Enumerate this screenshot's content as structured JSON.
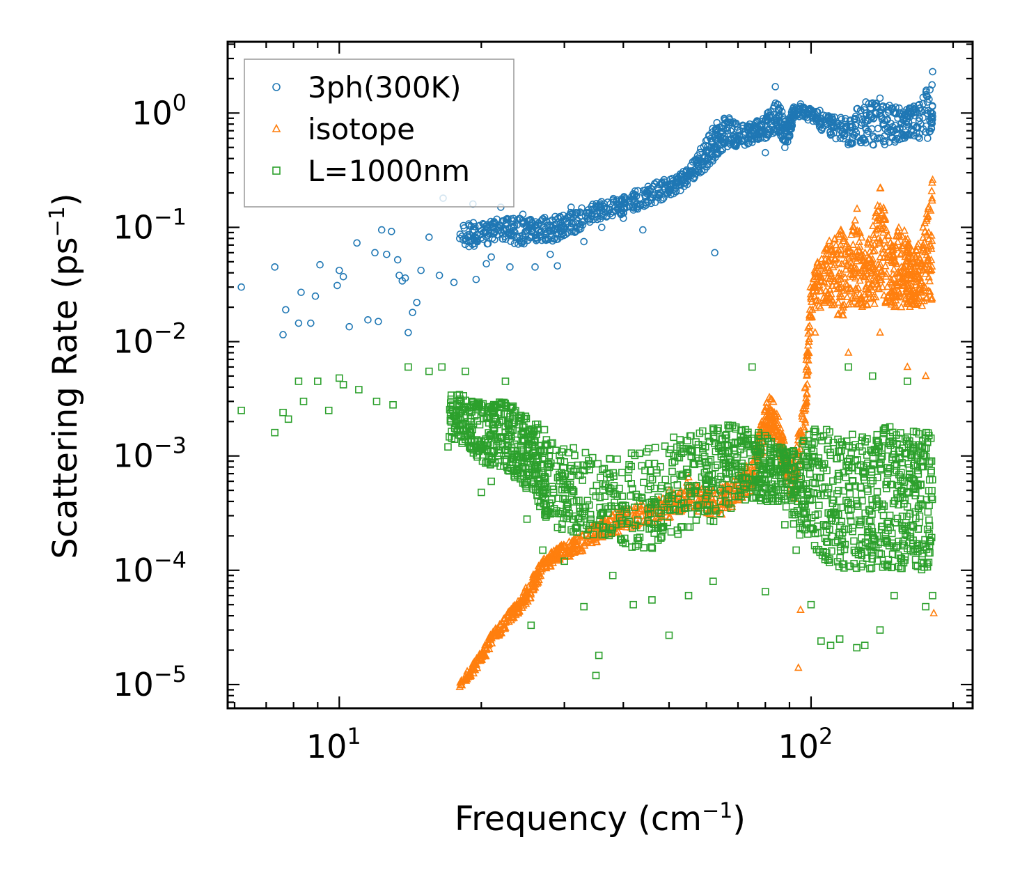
{
  "chart_data": {
    "type": "scatter",
    "title": "",
    "xlabel": "Frequency",
    "xlabel_unit_base": "cm",
    "xlabel_unit_exp": "−1",
    "ylabel": "Scattering Rate",
    "ylabel_unit_base": "ps",
    "ylabel_unit_exp": "−1",
    "xscale": "log",
    "yscale": "log",
    "xlim": [
      5.8,
      220
    ],
    "ylim": [
      6.2e-06,
      4.2
    ],
    "xticks": [
      {
        "value": 10,
        "base": "10",
        "exp": "1"
      },
      {
        "value": 100,
        "base": "10",
        "exp": "2"
      }
    ],
    "yticks": [
      {
        "value": 1,
        "base": "10",
        "exp": "0"
      },
      {
        "value": 0.1,
        "base": "10",
        "exp": "−1"
      },
      {
        "value": 0.01,
        "base": "10",
        "exp": "−2"
      },
      {
        "value": 0.001,
        "base": "10",
        "exp": "−3"
      },
      {
        "value": 0.0001,
        "base": "10",
        "exp": "−4"
      },
      {
        "value": 1e-05,
        "base": "10",
        "exp": "−5"
      }
    ],
    "legend_position": "top-left",
    "series": [
      {
        "name": "3ph(300K)",
        "marker": "circle",
        "color": "#1f77b4",
        "points": [
          [
            6.2,
            0.03
          ],
          [
            7.3,
            0.045
          ],
          [
            7.6,
            0.0115
          ],
          [
            7.7,
            0.019
          ],
          [
            8.2,
            0.0145
          ],
          [
            8.3,
            0.027
          ],
          [
            8.7,
            0.0145
          ],
          [
            8.9,
            0.025
          ],
          [
            9.1,
            0.047
          ],
          [
            9.9,
            0.031
          ],
          [
            10.0,
            0.042
          ],
          [
            10.2,
            0.037
          ],
          [
            10.5,
            0.0135
          ],
          [
            10.9,
            0.073
          ],
          [
            11.5,
            0.0155
          ],
          [
            11.9,
            0.06
          ],
          [
            12.1,
            0.015
          ],
          [
            12.3,
            0.095
          ],
          [
            12.6,
            0.058
          ],
          [
            12.9,
            0.092
          ],
          [
            13.3,
            0.052
          ],
          [
            13.4,
            0.038
          ],
          [
            13.6,
            0.034
          ],
          [
            13.8,
            0.036
          ],
          [
            14.0,
            0.012
          ],
          [
            14.3,
            0.018
          ],
          [
            14.6,
            0.022
          ],
          [
            14.9,
            0.042
          ],
          [
            15.5,
            0.082
          ],
          [
            16.3,
            0.038
          ],
          [
            16.6,
            0.18
          ],
          [
            17.5,
            0.033
          ],
          [
            18.0,
            0.08
          ],
          [
            19.2,
            0.16
          ],
          [
            19.5,
            0.035
          ],
          [
            20.5,
            0.048
          ],
          [
            21.0,
            0.055
          ],
          [
            22.0,
            0.15
          ],
          [
            23.0,
            0.045
          ],
          [
            24.5,
            0.13
          ],
          [
            26.0,
            0.045
          ],
          [
            28.0,
            0.058
          ],
          [
            29.0,
            0.046
          ],
          [
            31.0,
            0.15
          ],
          [
            33.0,
            0.075
          ],
          [
            36.0,
            0.1
          ],
          [
            40.0,
            0.12
          ],
          [
            44.0,
            0.095
          ],
          [
            62.5,
            0.06
          ],
          [
            80.0,
            0.45
          ],
          [
            84.0,
            1.7
          ],
          [
            88.0,
            0.5
          ],
          [
            95.0,
            1.2
          ],
          [
            105.0,
            0.9
          ],
          [
            120.0,
            0.55
          ],
          [
            140.0,
            1.35
          ],
          [
            160.0,
            1.0
          ],
          [
            181.0,
            2.3
          ]
        ],
        "band": [
          [
            18.0,
            0.065,
            0.11
          ],
          [
            20.0,
            0.07,
            0.11
          ],
          [
            22.0,
            0.075,
            0.12
          ],
          [
            24.0,
            0.07,
            0.12
          ],
          [
            26.0,
            0.075,
            0.12
          ],
          [
            28.0,
            0.075,
            0.125
          ],
          [
            30.0,
            0.08,
            0.13
          ],
          [
            33.0,
            0.1,
            0.15
          ],
          [
            36.0,
            0.12,
            0.17
          ],
          [
            40.0,
            0.13,
            0.19
          ],
          [
            44.0,
            0.15,
            0.23
          ],
          [
            48.0,
            0.17,
            0.26
          ],
          [
            52.0,
            0.2,
            0.28
          ],
          [
            56.0,
            0.25,
            0.38
          ],
          [
            60.0,
            0.32,
            0.6
          ],
          [
            63.0,
            0.42,
            0.85
          ],
          [
            66.0,
            0.5,
            0.95
          ],
          [
            70.0,
            0.5,
            0.8
          ],
          [
            75.0,
            0.55,
            0.85
          ],
          [
            80.0,
            0.6,
            0.95
          ],
          [
            85.0,
            0.7,
            1.3
          ],
          [
            89.0,
            0.5,
            0.8
          ],
          [
            92.0,
            0.9,
            1.2
          ],
          [
            100.0,
            0.85,
            1.1
          ],
          [
            110.0,
            0.6,
            1.0
          ],
          [
            120.0,
            0.5,
            0.9
          ],
          [
            130.0,
            0.55,
            1.3
          ],
          [
            140.0,
            0.5,
            1.2
          ],
          [
            150.0,
            0.55,
            1.15
          ],
          [
            160.0,
            0.6,
            1.1
          ],
          [
            170.0,
            0.6,
            1.2
          ],
          [
            181.0,
            0.6,
            2.2
          ]
        ]
      },
      {
        "name": "isotope",
        "marker": "triangle",
        "color": "#ff7f0e",
        "points": [
          [
            18.0,
            9.5e-06
          ],
          [
            19.0,
            1.2e-05
          ],
          [
            20.5,
            2.2e-05
          ],
          [
            22.0,
            3.3e-05
          ],
          [
            24.0,
            4.8e-05
          ],
          [
            26.0,
            7.5e-05
          ],
          [
            28.0,
            0.00012
          ],
          [
            30.0,
            0.00014
          ],
          [
            35.0,
            0.00024
          ],
          [
            40.0,
            0.00031
          ],
          [
            50.0,
            0.0005
          ],
          [
            55.0,
            0.00065
          ],
          [
            62.0,
            0.0005
          ],
          [
            80.0,
            0.0025
          ],
          [
            85.0,
            0.0015
          ],
          [
            94.0,
            1.4e-05
          ],
          [
            95.0,
            4.5e-05
          ],
          [
            98.0,
            0.006
          ],
          [
            102.0,
            0.012
          ],
          [
            120.0,
            0.008
          ],
          [
            140.0,
            0.012
          ],
          [
            160.0,
            0.006
          ],
          [
            175.0,
            0.005
          ],
          [
            181.0,
            0.26
          ],
          [
            182.0,
            4.2e-05
          ]
        ],
        "band": [
          [
            18.0,
            9.3e-06,
            1.05e-05
          ],
          [
            19.5,
            1.3e-05,
            1.7e-05
          ],
          [
            21.0,
            2.1e-05,
            2.8e-05
          ],
          [
            22.5,
            3.1e-05,
            4e-05
          ],
          [
            24.0,
            4.2e-05,
            5.5e-05
          ],
          [
            25.5,
            5.8e-05,
            8.5e-05
          ],
          [
            27.0,
            9.5e-05,
            0.000125
          ],
          [
            29.0,
            0.00012,
            0.00016
          ],
          [
            31.0,
            0.00013,
            0.00018
          ],
          [
            34.0,
            0.00016,
            0.00024
          ],
          [
            37.0,
            0.0002,
            0.0003
          ],
          [
            40.0,
            0.00022,
            0.00035
          ],
          [
            45.0,
            0.00025,
            0.00038
          ],
          [
            50.0,
            0.00028,
            0.00045
          ],
          [
            55.0,
            0.00035,
            0.0006
          ],
          [
            60.0,
            0.0003,
            0.0005
          ],
          [
            65.0,
            0.0003,
            0.00055
          ],
          [
            70.0,
            0.0004,
            0.0007
          ],
          [
            75.0,
            0.0005,
            0.0009
          ],
          [
            78.0,
            0.0009,
            0.0018
          ],
          [
            81.0,
            0.0015,
            0.0035
          ],
          [
            84.0,
            0.0014,
            0.0028
          ],
          [
            87.0,
            0.0008,
            0.0016
          ],
          [
            92.0,
            0.0004,
            0.0009
          ],
          [
            97.0,
            0.0015,
            0.004
          ],
          [
            100.0,
            0.015,
            0.04
          ],
          [
            105.0,
            0.02,
            0.06
          ],
          [
            110.0,
            0.022,
            0.08
          ],
          [
            115.0,
            0.015,
            0.1
          ],
          [
            120.0,
            0.02,
            0.07
          ],
          [
            125.0,
            0.02,
            0.15
          ],
          [
            130.0,
            0.02,
            0.06
          ],
          [
            135.0,
            0.02,
            0.1
          ],
          [
            140.0,
            0.025,
            0.25
          ],
          [
            145.0,
            0.02,
            0.1
          ],
          [
            150.0,
            0.02,
            0.07
          ],
          [
            155.0,
            0.02,
            0.12
          ],
          [
            160.0,
            0.02,
            0.08
          ],
          [
            165.0,
            0.02,
            0.06
          ],
          [
            170.0,
            0.02,
            0.08
          ],
          [
            175.0,
            0.02,
            0.12
          ],
          [
            181.0,
            0.02,
            0.27
          ]
        ]
      },
      {
        "name": "L=1000nm",
        "marker": "square",
        "color": "#2ca02c",
        "points": [
          [
            6.2,
            0.0025
          ],
          [
            7.3,
            0.0016
          ],
          [
            7.6,
            0.0024
          ],
          [
            7.8,
            0.0021
          ],
          [
            8.2,
            0.0045
          ],
          [
            8.4,
            0.003
          ],
          [
            9.0,
            0.0045
          ],
          [
            9.5,
            0.0025
          ],
          [
            10.0,
            0.0048
          ],
          [
            10.2,
            0.0042
          ],
          [
            11.0,
            0.0038
          ],
          [
            12.0,
            0.003
          ],
          [
            13.0,
            0.0028
          ],
          [
            14.0,
            0.006
          ],
          [
            15.5,
            0.0055
          ],
          [
            16.5,
            0.006
          ],
          [
            17.0,
            0.0012
          ],
          [
            18.5,
            0.0055
          ],
          [
            19.0,
            0.0016
          ],
          [
            20.0,
            0.00048
          ],
          [
            21.0,
            0.0006
          ],
          [
            22.5,
            0.0045
          ],
          [
            23.0,
            0.0022
          ],
          [
            24.5,
            0.00058
          ],
          [
            25.0,
            0.00028
          ],
          [
            25.5,
            3.3e-05
          ],
          [
            27.0,
            0.00015
          ],
          [
            30.0,
            0.00012
          ],
          [
            33.0,
            4.8e-05
          ],
          [
            35.0,
            1.2e-05
          ],
          [
            35.5,
            1.8e-05
          ],
          [
            38.0,
            9e-05
          ],
          [
            42.0,
            5e-05
          ],
          [
            46.0,
            5.5e-05
          ],
          [
            50.0,
            2.7e-05
          ],
          [
            55.0,
            6e-05
          ],
          [
            62.0,
            8e-05
          ],
          [
            75.0,
            0.006
          ],
          [
            80.0,
            6.5e-05
          ],
          [
            88.0,
            0.00025
          ],
          [
            93.0,
            0.00015
          ],
          [
            100.0,
            5e-05
          ],
          [
            105.0,
            2.4e-05
          ],
          [
            110.0,
            2.2e-05
          ],
          [
            115.0,
            2.5e-05
          ],
          [
            120.0,
            0.006
          ],
          [
            125.0,
            2.1e-05
          ],
          [
            130.0,
            2.2e-05
          ],
          [
            135.0,
            0.005
          ],
          [
            140.0,
            3e-05
          ],
          [
            150.0,
            6e-05
          ],
          [
            160.0,
            0.0045
          ],
          [
            175.0,
            4.8e-05
          ],
          [
            181.0,
            6e-05
          ]
        ],
        "band": [
          [
            17.0,
            0.0015,
            0.0035
          ],
          [
            18.0,
            0.0012,
            0.0035
          ],
          [
            19.0,
            0.0011,
            0.0032
          ],
          [
            20.0,
            0.0009,
            0.003
          ],
          [
            21.0,
            0.0008,
            0.0028
          ],
          [
            22.0,
            0.0008,
            0.003
          ],
          [
            23.0,
            0.0007,
            0.003
          ],
          [
            24.0,
            0.0006,
            0.0025
          ],
          [
            25.0,
            0.0005,
            0.0022
          ],
          [
            26.0,
            0.00045,
            0.002
          ],
          [
            27.0,
            0.0003,
            0.0018
          ],
          [
            28.0,
            0.00025,
            0.0015
          ],
          [
            30.0,
            0.00022,
            0.0012
          ],
          [
            32.0,
            0.0002,
            0.0012
          ],
          [
            35.0,
            0.0002,
            0.001
          ],
          [
            38.0,
            0.00018,
            0.001
          ],
          [
            42.0,
            0.00015,
            0.0011
          ],
          [
            46.0,
            0.00015,
            0.0012
          ],
          [
            50.0,
            0.00018,
            0.0014
          ],
          [
            54.0,
            0.00022,
            0.0016
          ],
          [
            58.0,
            0.00025,
            0.0018
          ],
          [
            62.0,
            0.00025,
            0.0018
          ],
          [
            66.0,
            0.0003,
            0.002
          ],
          [
            70.0,
            0.0004,
            0.0018
          ],
          [
            74.0,
            0.0004,
            0.0017
          ],
          [
            78.0,
            0.0004,
            0.0016
          ],
          [
            82.0,
            0.0004,
            0.0015
          ],
          [
            86.0,
            0.0004,
            0.0012
          ],
          [
            90.0,
            0.0003,
            0.0011
          ],
          [
            94.0,
            0.0002,
            0.0012
          ],
          [
            98.0,
            0.0002,
            0.0015
          ],
          [
            102.0,
            0.00015,
            0.0018
          ],
          [
            108.0,
            0.00012,
            0.0017
          ],
          [
            114.0,
            0.0001,
            0.0015
          ],
          [
            120.0,
            0.0001,
            0.0016
          ],
          [
            126.0,
            0.0001,
            0.0016
          ],
          [
            132.0,
            0.0001,
            0.0015
          ],
          [
            138.0,
            0.0001,
            0.0016
          ],
          [
            144.0,
            0.0001,
            0.0018
          ],
          [
            150.0,
            0.0001,
            0.0018
          ],
          [
            156.0,
            0.0001,
            0.0016
          ],
          [
            162.0,
            0.00012,
            0.0017
          ],
          [
            168.0,
            0.0001,
            0.0018
          ],
          [
            174.0,
            0.0001,
            0.0017
          ],
          [
            181.0,
            0.00012,
            0.0016
          ]
        ]
      }
    ]
  }
}
